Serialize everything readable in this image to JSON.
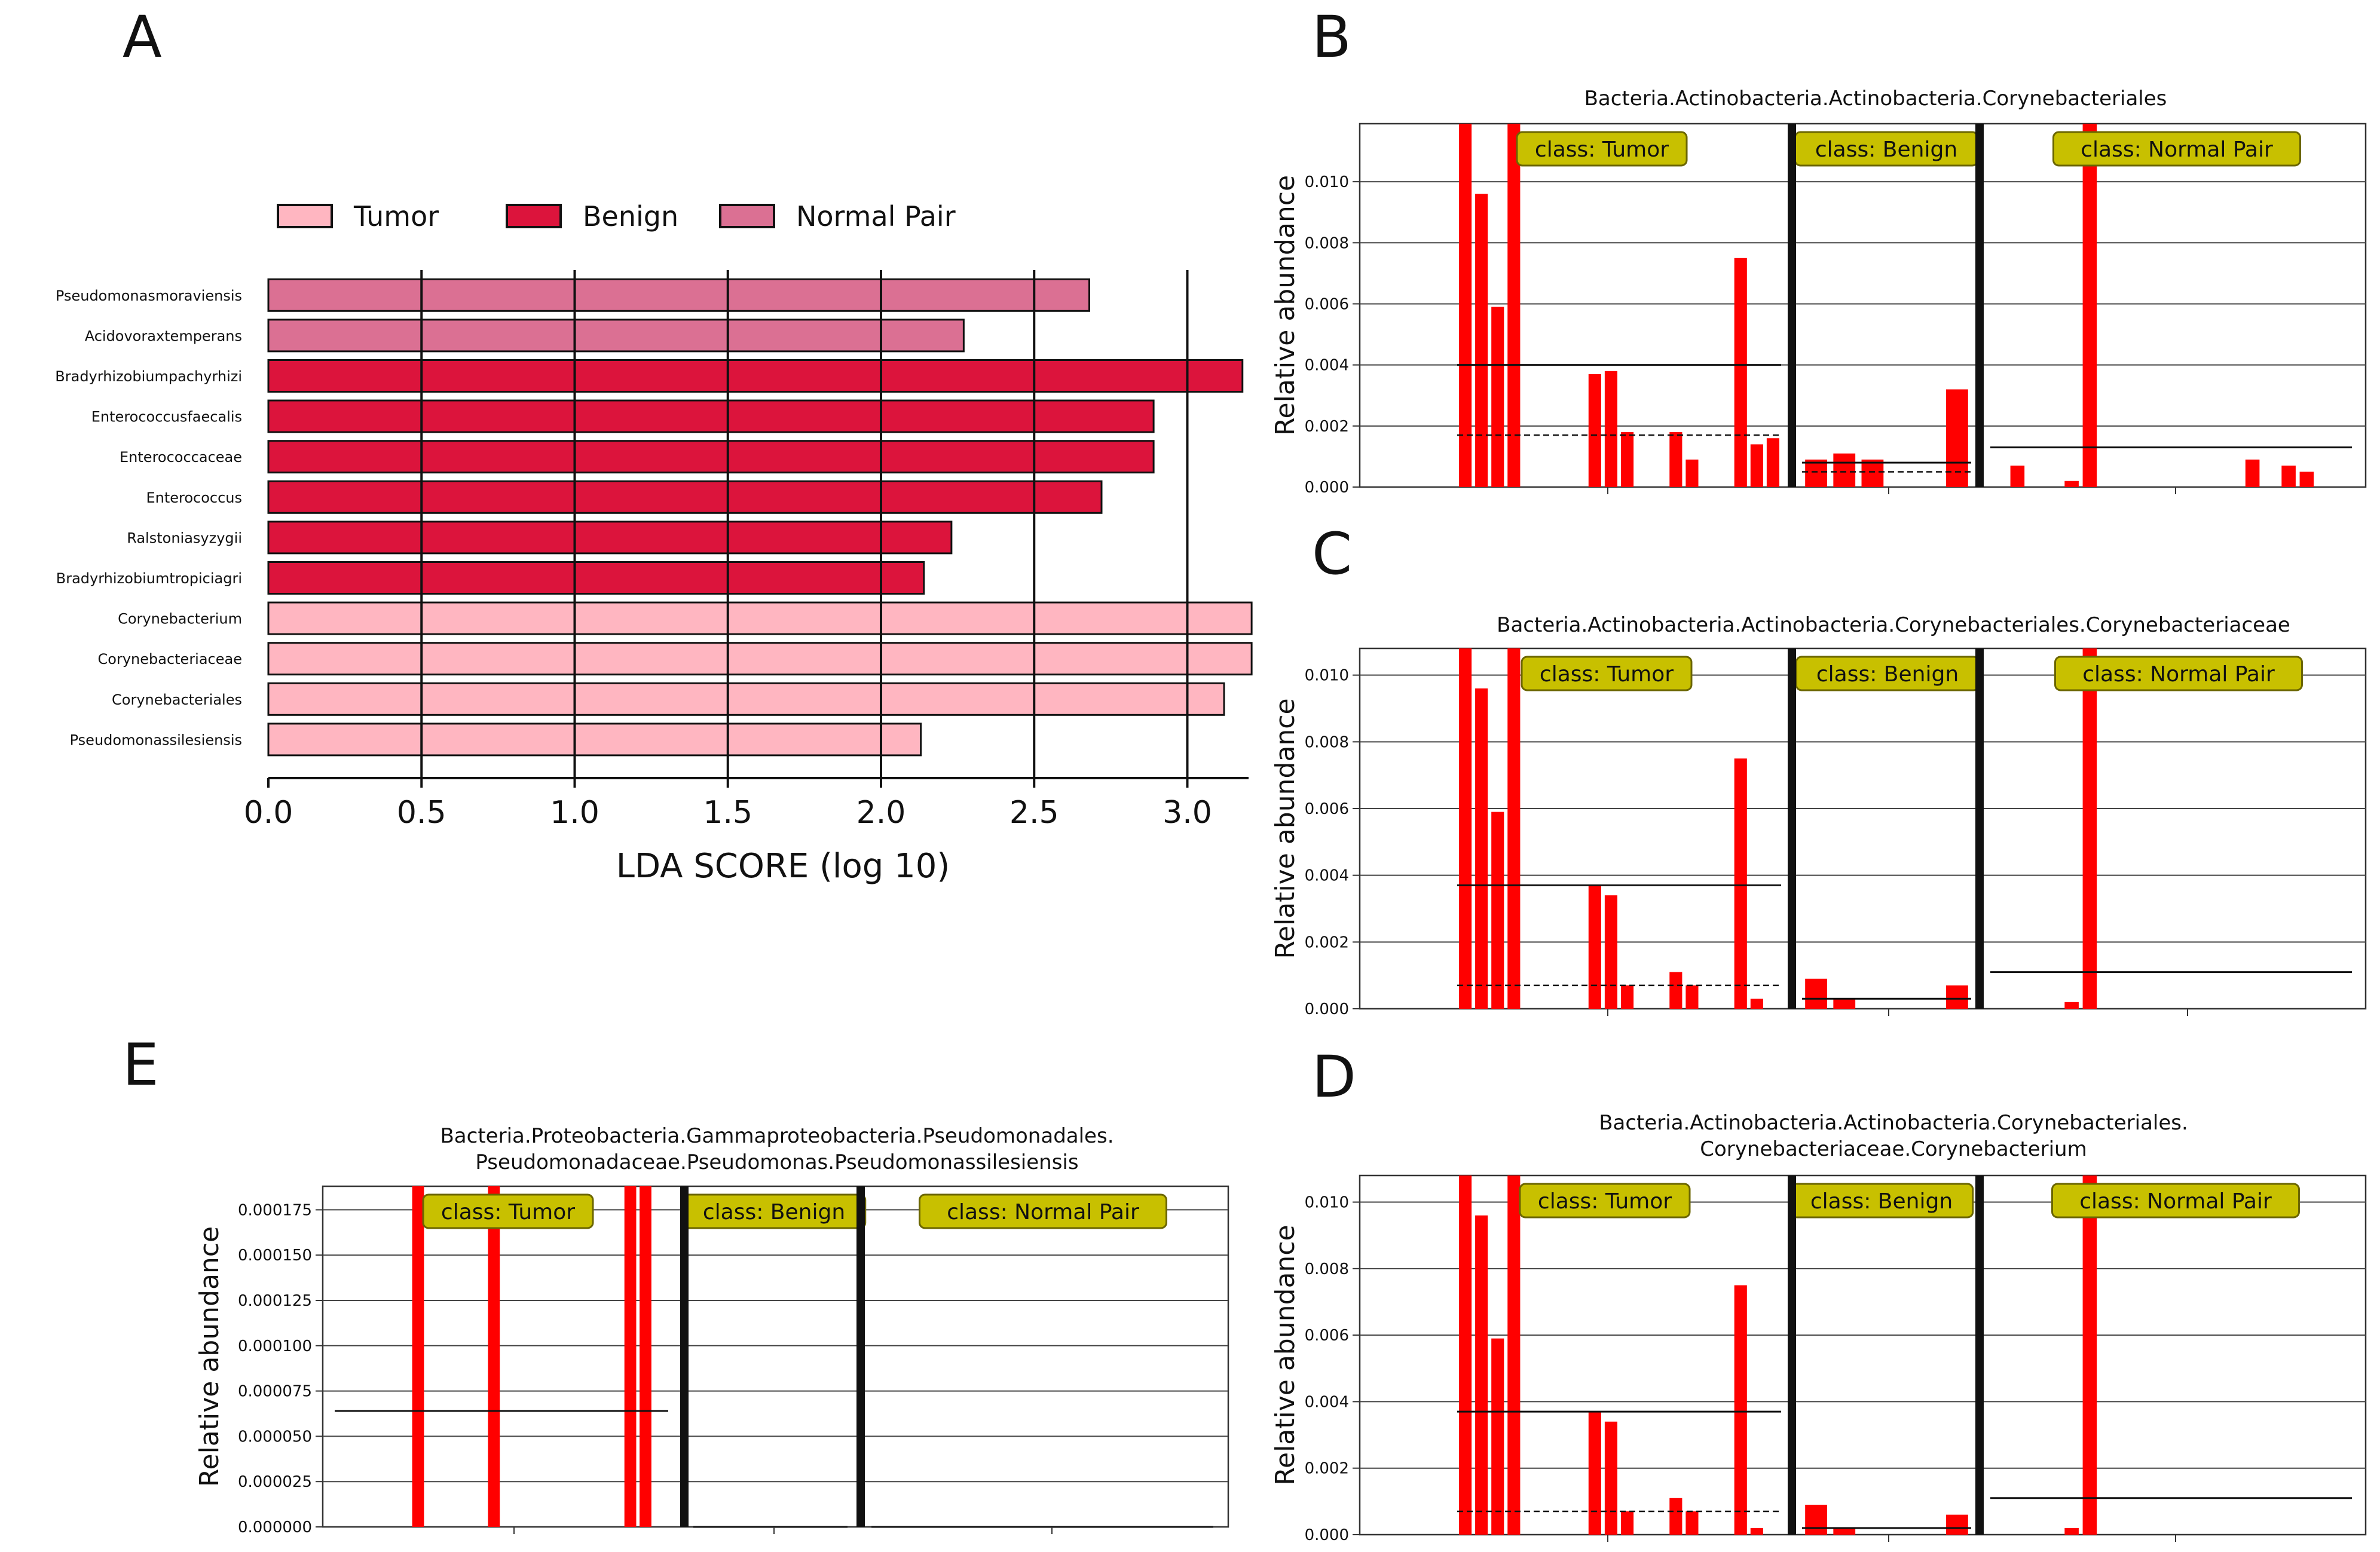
{
  "panels": {
    "A": "A",
    "B": "B",
    "C": "C",
    "D": "D",
    "E": "E"
  },
  "colors": {
    "tumor": "#ffb6c1",
    "benign": "#dc143c",
    "normal_pair": "#db7093",
    "abundance_bar": "#ff0000",
    "class_box": "#c8c000",
    "class_box_border": "#6b6600"
  },
  "chart_data": [
    {
      "id": "A",
      "type": "bar",
      "orientation": "horizontal",
      "xlabel": "LDA SCORE (log 10)",
      "xlim": [
        0,
        3.2
      ],
      "xticks": [
        "0.0",
        "0.5",
        "1.0",
        "1.5",
        "2.0",
        "2.5",
        "3.0"
      ],
      "grid": true,
      "legend_position": "top",
      "legend": [
        {
          "name": "Tumor",
          "color_key": "tumor"
        },
        {
          "name": "Benign",
          "color_key": "benign"
        },
        {
          "name": "Normal Pair",
          "color_key": "normal_pair"
        }
      ],
      "categories": [
        "Pseudomonasmoraviensis",
        "Acidovoraxtemperans",
        "Bradyrhizobiumpachyrhizi",
        "Enterococcusfaecalis",
        "Enterococcaceae",
        "Enterococcus",
        "Ralstoniasyzygii",
        "Bradyrhizobiumtropiciagri",
        "Corynebacterium",
        "Corynebacteriaceae",
        "Corynebacteriales",
        "Pseudomonassilesiensis"
      ],
      "values": [
        2.68,
        2.27,
        3.18,
        2.89,
        2.89,
        2.72,
        2.23,
        2.14,
        3.21,
        3.21,
        3.12,
        2.13
      ],
      "groups": [
        "Normal Pair",
        "Normal Pair",
        "Benign",
        "Benign",
        "Benign",
        "Benign",
        "Benign",
        "Benign",
        "Tumor",
        "Tumor",
        "Tumor",
        "Tumor"
      ]
    },
    {
      "id": "B",
      "type": "bar",
      "title": [
        "Bacteria.Actinobacteria.Actinobacteria.Corynebacteriales"
      ],
      "ylabel": "Relative abundance",
      "ylim": [
        0,
        0.0119
      ],
      "yticks": [
        "0.000",
        "0.002",
        "0.004",
        "0.006",
        "0.008",
        "0.010"
      ],
      "classes": [
        "class: Tumor",
        "class: Benign",
        "class: Normal Pair"
      ],
      "groups": [
        {
          "values": [
            0.0119,
            0.0096,
            0.0059,
            0.0119,
            0,
            0,
            0,
            0,
            0.0037,
            0.0038,
            0.0018,
            0,
            0,
            0.0018,
            0.0009,
            0,
            0,
            0.0075,
            0.0014,
            0.0016
          ],
          "mean": 0.004,
          "median": 0.0017
        },
        {
          "values": [
            0.0009,
            0.0011,
            0.0009,
            0,
            0,
            0.0032
          ],
          "mean": 0.0008,
          "median": 0.0005
        },
        {
          "values": [
            0,
            0.0007,
            0,
            0,
            0.0002,
            0.0119,
            0,
            0,
            0,
            0,
            0,
            0,
            0,
            0,
            0.0009,
            0,
            0.0007,
            0.0005,
            0,
            0
          ],
          "mean": 0.0013,
          "median": 0.0
        }
      ]
    },
    {
      "id": "C",
      "type": "bar",
      "title": [
        "Bacteria.Actinobacteria.Actinobacteria.Corynebacteriales.Corynebacteriaceae"
      ],
      "ylabel": "Relative abundance",
      "ylim": [
        0,
        0.0108
      ],
      "yticks": [
        "0.000",
        "0.002",
        "0.004",
        "0.006",
        "0.008",
        "0.010"
      ],
      "classes": [
        "class: Tumor",
        "class: Benign",
        "class: Normal Pair"
      ],
      "groups": [
        {
          "values": [
            0.0108,
            0.0096,
            0.0059,
            0.0108,
            0,
            0,
            0,
            0,
            0.0037,
            0.0034,
            0.0007,
            0,
            0,
            0.0011,
            0.0007,
            0,
            0,
            0.0075,
            0.0003,
            0
          ],
          "mean": 0.0037,
          "median": 0.0007
        },
        {
          "values": [
            0.0009,
            0.0003,
            0,
            0,
            0,
            0.0007
          ],
          "mean": 0.0003,
          "median": 0.0
        },
        {
          "values": [
            0,
            0,
            0,
            0,
            0.0002,
            0.0108,
            0,
            0,
            0,
            0,
            0,
            0,
            0,
            0,
            0,
            0,
            0,
            0,
            0,
            0
          ],
          "mean": 0.0011,
          "median": 0.0
        }
      ]
    },
    {
      "id": "D",
      "type": "bar",
      "title": [
        "Bacteria.Actinobacteria.Actinobacteria.Corynebacteriales.",
        "Corynebacteriaceae.Corynebacterium"
      ],
      "ylabel": "Relative abundance",
      "ylim": [
        0,
        0.0108
      ],
      "yticks": [
        "0.000",
        "0.002",
        "0.004",
        "0.006",
        "0.008",
        "0.010"
      ],
      "classes": [
        "class: Tumor",
        "class: Benign",
        "class: Normal Pair"
      ],
      "groups": [
        {
          "values": [
            0.0108,
            0.0096,
            0.0059,
            0.0108,
            0,
            0,
            0,
            0,
            0.0037,
            0.0034,
            0.0007,
            0,
            0,
            0.0011,
            0.0007,
            0,
            0,
            0.0075,
            0.0002,
            0
          ],
          "mean": 0.0037,
          "median": 0.0007
        },
        {
          "values": [
            0.0009,
            0.0002,
            0,
            0,
            0,
            0.0006
          ],
          "mean": 0.0002,
          "median": 0.0
        },
        {
          "values": [
            0,
            0,
            0,
            0,
            0.0002,
            0.0108,
            0,
            0,
            0,
            0,
            0,
            0,
            0,
            0,
            0,
            0,
            0,
            0,
            0,
            0
          ],
          "mean": 0.0011,
          "median": 0.0
        }
      ]
    },
    {
      "id": "E",
      "type": "bar",
      "title": [
        "Bacteria.Proteobacteria.Gammaproteobacteria.Pseudomonadales.",
        "Pseudomonadaceae.Pseudomonas.Pseudomonassilesiensis"
      ],
      "ylabel": "Relative abundance",
      "ylim": [
        0,
        0.000188
      ],
      "yticks": [
        "0.000000",
        "0.000025",
        "0.000050",
        "0.000075",
        "0.000100",
        "0.000125",
        "0.000150",
        "0.000175"
      ],
      "classes": [
        "class: Tumor",
        "class: Benign",
        "class: Normal Pair"
      ],
      "groups": [
        {
          "values": [
            0,
            0,
            0,
            0,
            0,
            0.000188,
            0,
            0,
            0,
            0,
            0.000188,
            0,
            0,
            0,
            0,
            0,
            0,
            0,
            0,
            0.000188,
            0.000188,
            0
          ],
          "mean": 6.4e-05,
          "median": 0.0
        },
        {
          "values": [
            0,
            0,
            0,
            0,
            0,
            0,
            0
          ],
          "mean": 0.0,
          "median": 0.0
        },
        {
          "values": [
            0,
            0,
            0,
            0,
            0,
            0,
            0,
            0,
            0,
            0,
            0,
            0,
            0,
            0,
            0,
            0,
            0,
            0,
            0,
            0
          ],
          "mean": 0.0,
          "median": 0.0
        }
      ]
    }
  ]
}
